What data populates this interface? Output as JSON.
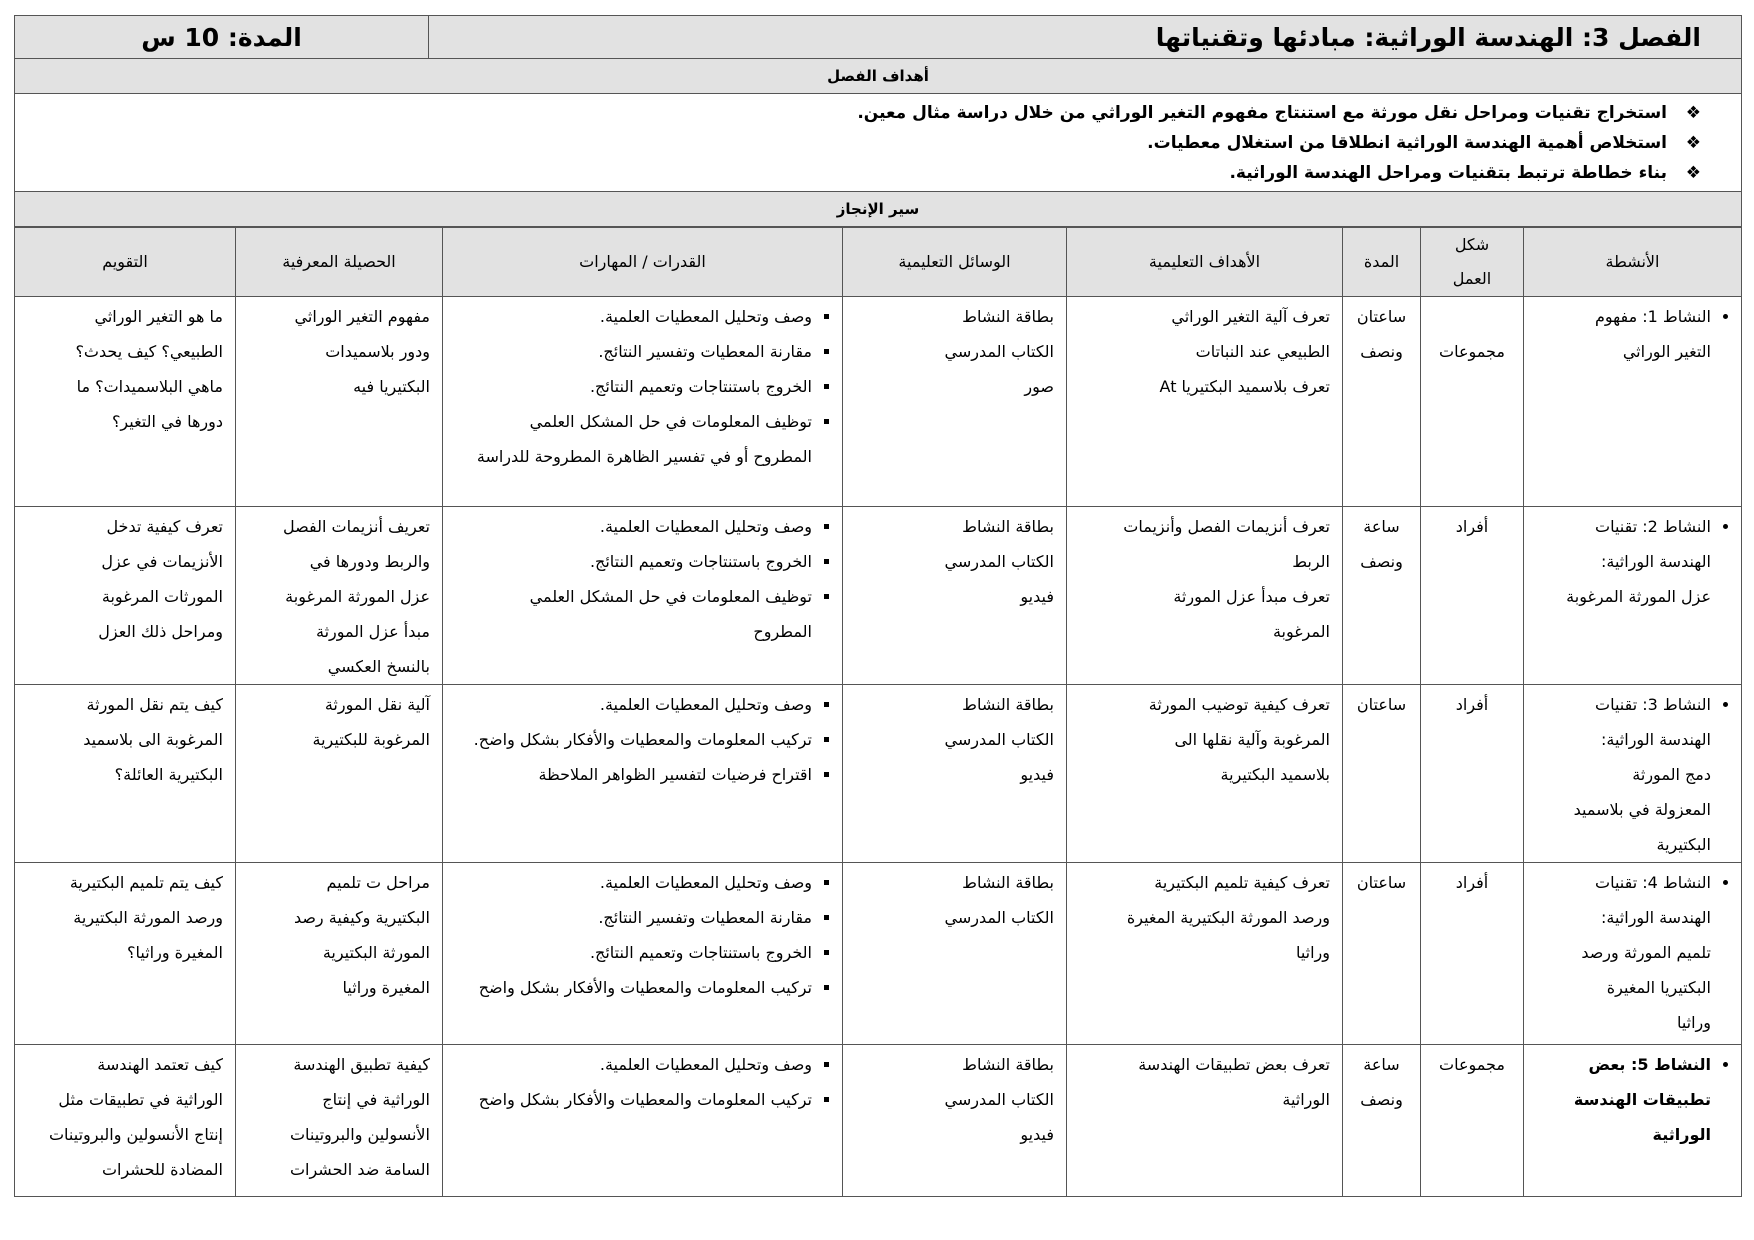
{
  "header": {
    "chapter_title": "الفصل 3: الهندسة الوراثية: مبادئها وتقنياتها",
    "duration": "المدة: 10 س"
  },
  "goals": {
    "title": "أهداف الفصل",
    "bullet_icon": "diamond-dots-icon",
    "items": [
      "استخراج تقنيات ومراحل نقل مورثة مع استنتاج مفهوم التغير الوراثي من خلال دراسة مثال معين.",
      "استخلاص أهمية الهندسة الوراثية انطلاقا من استغلال معطيات.",
      "بناء خطاطة ترتبط بتقنيات ومراحل الهندسة الوراثية."
    ]
  },
  "progress": {
    "title": "سير الإنجاز"
  },
  "columns": [
    "الأنشطة",
    "شكل العمل",
    "المدة",
    "الأهداف التعليمية",
    "الوسائل التعليمية",
    "القدرات / المهارات",
    "الحصيلة المعرفية",
    "التقويم"
  ],
  "rows": [
    {
      "activity": [
        "النشاط 1: مفهوم",
        "التغير الوراثي"
      ],
      "form": "مجموعات",
      "duration": [
        "ساعتان",
        "ونصف"
      ],
      "objectives": [
        "تعرف آلية التغير الوراثي",
        "الطبيعي عند النباتات",
        "تعرف بلاسميد البكتيريا At"
      ],
      "means": [
        "بطاقة النشاط",
        "الكتاب المدرسي",
        "صور"
      ],
      "skills": [
        "وصف وتحليل المعطيات العلمية.",
        "مقارنة المعطيات وتفسير النتائج.",
        "الخروج باستنتاجات وتعميم النتائج.",
        "توظيف المعلومات في حل المشكل العلمي المطروح أو في تفسير الظاهرة المطروحة للدراسة"
      ],
      "knowledge": [
        "مفهوم التغير الوراثي",
        "ودور بلاسميدات",
        "البكتيريا فيه"
      ],
      "evaluation": [
        "ما هو التغير الوراثي",
        "الطبيعي؟ كيف يحدث؟",
        "ماهي البلاسميدات؟ ما",
        "دورها في التغير؟"
      ]
    },
    {
      "activity": [
        "النشاط 2: تقنيات",
        "الهندسة الوراثية:",
        "عزل المورثة المرغوبة"
      ],
      "form": "أفراد",
      "duration": [
        "ساعة",
        "ونصف"
      ],
      "objectives": [
        "تعرف أنزيمات الفصل وأنزيمات",
        "الربط",
        "تعرف مبدأ عزل المورثة",
        "المرغوبة"
      ],
      "means": [
        "بطاقة النشاط",
        "الكتاب المدرسي",
        "فيديو"
      ],
      "skills": [
        "وصف وتحليل المعطيات العلمية.",
        "الخروج باستنتاجات وتعميم النتائج.",
        "توظيف المعلومات في حل المشكل العلمي المطروح"
      ],
      "knowledge": [
        "تعريف أنزيمات الفصل",
        "والربط ودورها في",
        "عزل المورثة المرغوبة",
        "مبدأ عزل المورثة",
        "بالنسخ العكسي"
      ],
      "evaluation": [
        "تعرف كيفية تدخل",
        "الأنزيمات في عزل",
        "المورثات المرغوبة",
        "ومراحل ذلك العزل"
      ]
    },
    {
      "activity": [
        "النشاط 3: تقنيات",
        "الهندسة الوراثية:",
        "دمج المورثة",
        "المعزولة في بلاسميد",
        "البكتيرية"
      ],
      "form": "أفراد",
      "duration": [
        "ساعتان"
      ],
      "objectives": [
        "تعرف كيفية توضيب المورثة",
        "المرغوبة وآلية نقلها الى",
        "بلاسميد البكتيرية"
      ],
      "means": [
        "بطاقة النشاط",
        "الكتاب المدرسي",
        "فيديو"
      ],
      "skills": [
        "وصف وتحليل المعطيات العلمية.",
        "تركيب المعلومات والمعطيات والأفكار بشكل واضح.",
        "اقتراح فرضيات لتفسير الظواهر الملاحظة"
      ],
      "knowledge": [
        "آلية نقل المورثة",
        "المرغوبة للبكتيرية"
      ],
      "evaluation": [
        "كيف يتم نقل المورثة",
        "المرغوبة الى بلاسميد",
        "البكتيرية العائلة؟"
      ]
    },
    {
      "activity": [
        "النشاط 4: تقنيات",
        "الهندسة الوراثية:",
        "تلميم المورثة ورصد",
        "البكتيريا المغيرة",
        "وراثيا"
      ],
      "form": "أفراد",
      "duration": [
        "ساعتان"
      ],
      "objectives": [
        "تعرف كيفية تلميم البكتيرية",
        "ورصد المورثة البكتيرية المغيرة",
        "وراثيا"
      ],
      "means": [
        "بطاقة النشاط",
        "الكتاب المدرسي"
      ],
      "skills": [
        "وصف وتحليل المعطيات العلمية.",
        "مقارنة المعطيات وتفسير النتائج.",
        "الخروج باستنتاجات وتعميم النتائج.",
        "تركيب المعلومات والمعطيات والأفكار بشكل واضح"
      ],
      "knowledge": [
        "مراحل ت تلميم",
        "البكتيرية وكيفية رصد",
        "المورثة البكتيرية",
        "المغيرة وراثيا"
      ],
      "evaluation": [
        "كيف يتم تلميم البكتيرية",
        "ورصد المورثة البكتيرية",
        "المغيرة وراثيا؟"
      ]
    },
    {
      "activity": [
        "النشاط 5: بعض",
        "تطبيقات الهندسة",
        "الوراثية"
      ],
      "form": "مجموعات",
      "duration": [
        "ساعة",
        "ونصف"
      ],
      "objectives": [
        "تعرف بعض تطبيقات الهندسة",
        "الوراثية"
      ],
      "means": [
        "بطاقة النشاط",
        "الكتاب المدرسي",
        "فيديو"
      ],
      "skills": [
        "وصف وتحليل المعطيات العلمية.",
        "تركيب المعلومات والمعطيات والأفكار بشكل واضح"
      ],
      "knowledge": [
        "كيفية تطبيق الهندسة",
        "الوراثية في إنتاج",
        "الأنسولين والبروتينات",
        "السامة ضد الحشرات"
      ],
      "evaluation": [
        "كيف تعتمد الهندسة",
        "الوراثية في تطبيقات مثل",
        "إنتاج الأنسولين والبروتينات",
        "المضادة للحشرات"
      ]
    }
  ]
}
